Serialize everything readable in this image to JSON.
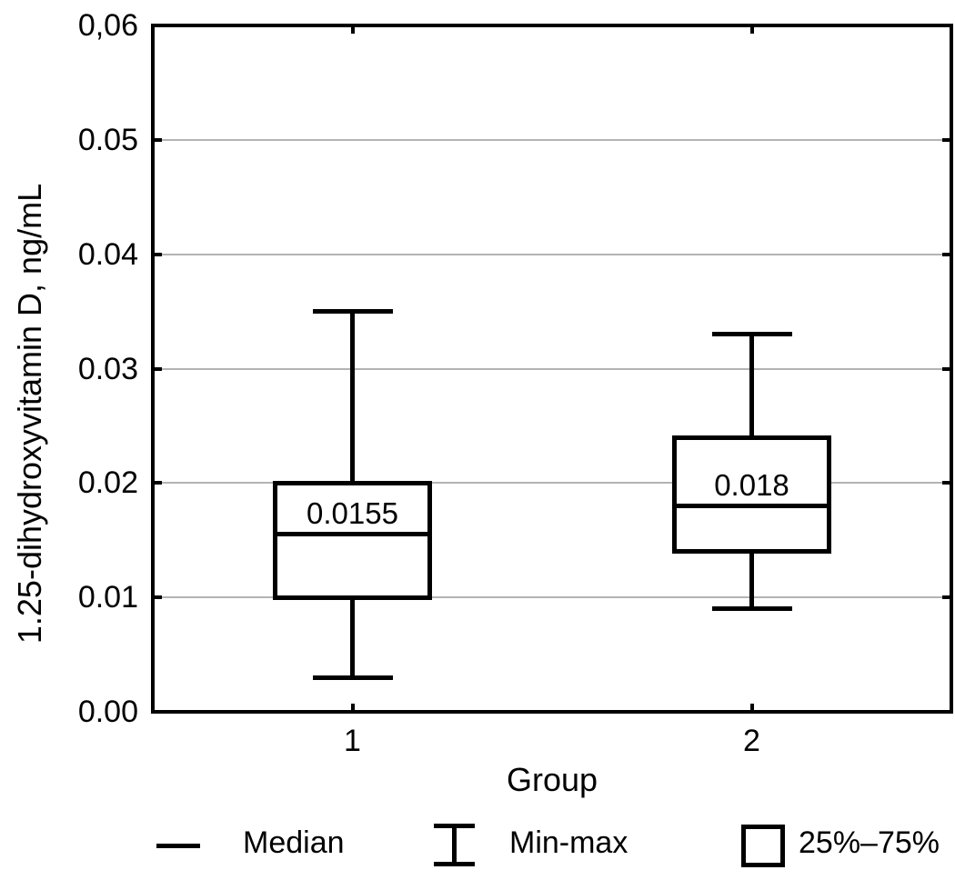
{
  "figure": {
    "background": "#ffffff",
    "line_color": "#000000",
    "gridline_color": "#b3b3b3",
    "box_fill": "#ffffff"
  },
  "chart_data": {
    "type": "boxplot",
    "title": "",
    "xlabel": "Group",
    "ylabel": "1.25-dihydroxyvitamin D, ng/mL",
    "ylim": [
      0,
      0.06
    ],
    "grid": "horizontal gridlines at every y tick",
    "legend_position": "bottom",
    "y_ticks": [
      {
        "value": 0.06,
        "label": "0,06"
      },
      {
        "value": 0.05,
        "label": "0.05"
      },
      {
        "value": 0.04,
        "label": "0.04"
      },
      {
        "value": 0.03,
        "label": "0.03"
      },
      {
        "value": 0.02,
        "label": "0.02"
      },
      {
        "value": 0.01,
        "label": "0.01"
      },
      {
        "value": 0.0,
        "label": "0.00"
      }
    ],
    "groups": [
      {
        "category": "1",
        "min": 0.003,
        "q1": 0.01,
        "median": 0.0155,
        "q3": 0.02,
        "max": 0.035,
        "median_label": "0.0155"
      },
      {
        "category": "2",
        "min": 0.009,
        "q1": 0.014,
        "median": 0.018,
        "q3": 0.024,
        "max": 0.033,
        "median_label": "0.018"
      }
    ],
    "legend": [
      {
        "symbol": "median-line",
        "label": "Median"
      },
      {
        "symbol": "min-max-whisker",
        "label": "Min-max"
      },
      {
        "symbol": "box",
        "label": "25%–75%"
      }
    ]
  }
}
